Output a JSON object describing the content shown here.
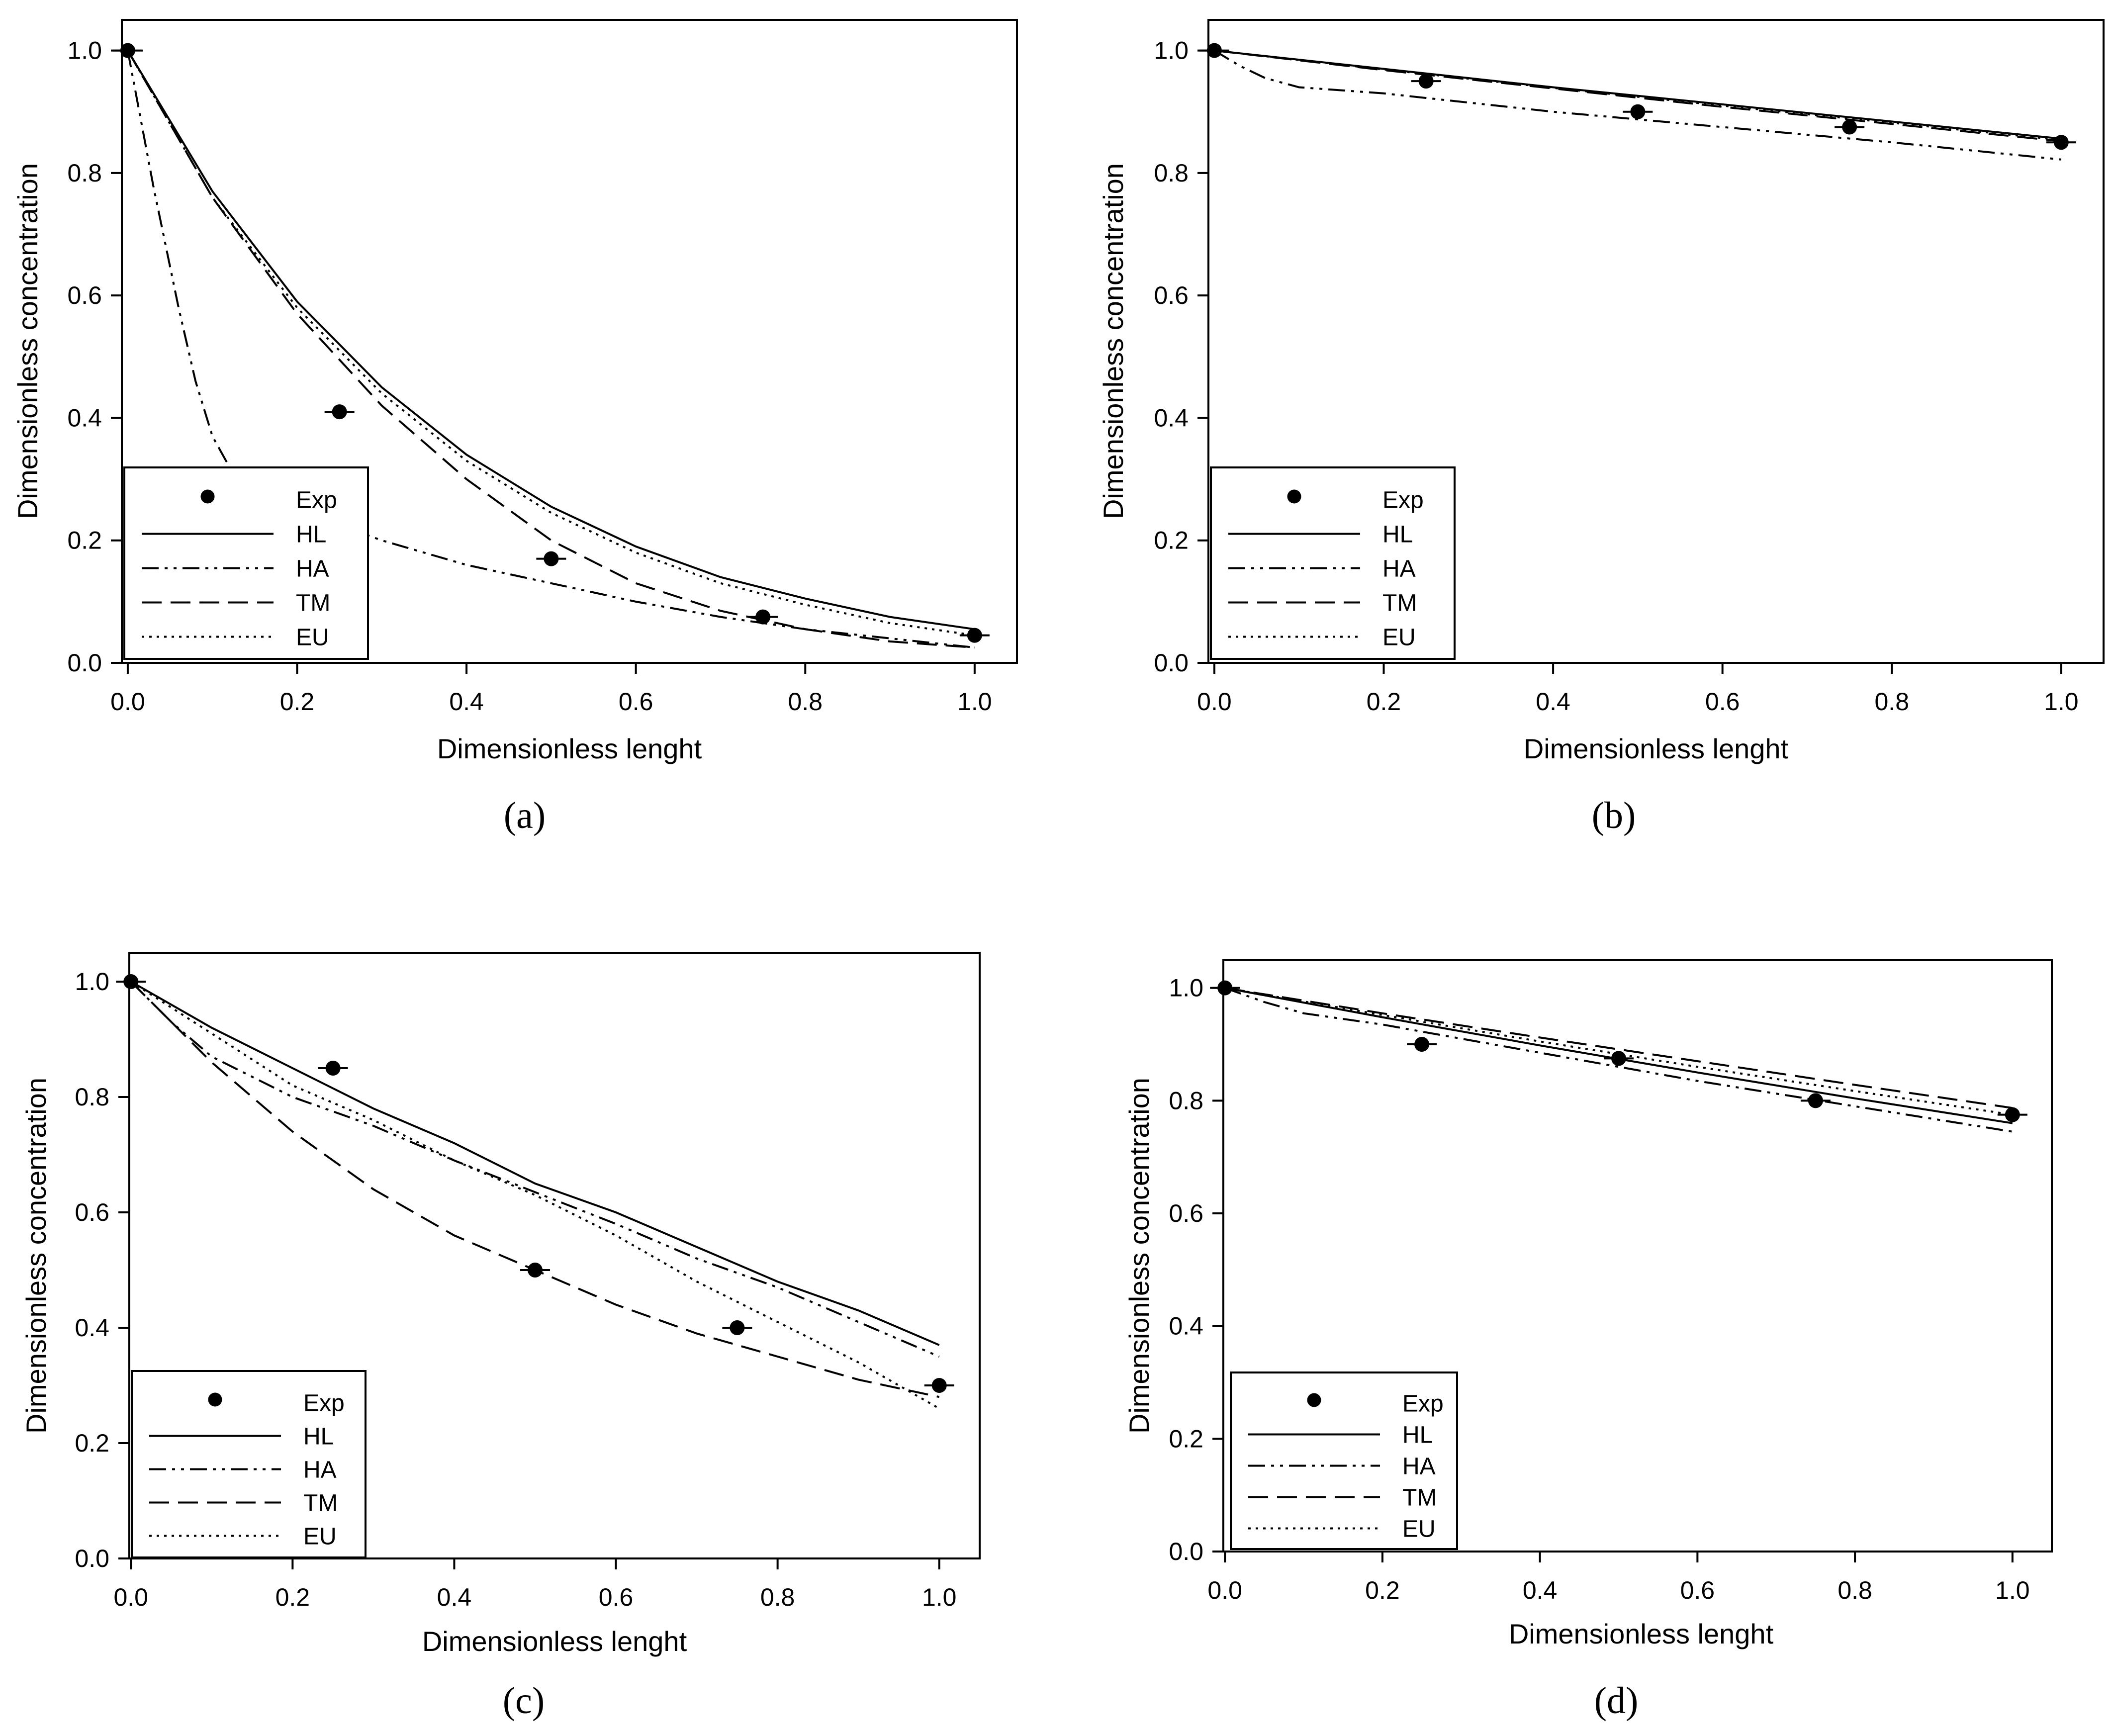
{
  "chart_data": [
    {
      "type": "line",
      "panel": "a",
      "caption": "(a)",
      "xlabel": "Dimensionless lenght",
      "ylabel": "Dimensionless concentration",
      "xlim": [
        0.0,
        1.0
      ],
      "ylim": [
        0.0,
        1.0
      ],
      "xticks": [
        "0.0",
        "0.2",
        "0.4",
        "0.6",
        "0.8",
        "1.0"
      ],
      "yticks": [
        "0.0",
        "0.2",
        "0.4",
        "0.6",
        "0.8",
        "1.0"
      ],
      "legend": [
        "Exp",
        "HL",
        "HA",
        "TM",
        "EU"
      ],
      "exp": {
        "name": "Exp",
        "x": [
          0.0,
          0.25,
          0.5,
          0.75,
          1.0
        ],
        "y": [
          1.0,
          0.41,
          0.17,
          0.075,
          0.045
        ]
      },
      "series": [
        {
          "name": "HL",
          "style": "solid",
          "x": [
            0.0,
            0.1,
            0.2,
            0.3,
            0.4,
            0.5,
            0.6,
            0.7,
            0.8,
            0.9,
            1.0
          ],
          "y": [
            1.0,
            0.77,
            0.59,
            0.45,
            0.34,
            0.255,
            0.19,
            0.14,
            0.105,
            0.075,
            0.055
          ]
        },
        {
          "name": "HA",
          "style": "dashdotdot",
          "x": [
            0.0,
            0.03,
            0.06,
            0.08,
            0.1,
            0.12,
            0.15,
            0.2,
            0.3,
            0.4,
            0.5,
            0.6,
            0.7,
            0.8,
            0.9,
            1.0
          ],
          "y": [
            1.0,
            0.78,
            0.58,
            0.46,
            0.37,
            0.32,
            0.285,
            0.25,
            0.2,
            0.16,
            0.13,
            0.1,
            0.075,
            0.055,
            0.04,
            0.025
          ]
        },
        {
          "name": "TM",
          "style": "dashed",
          "x": [
            0.0,
            0.1,
            0.2,
            0.3,
            0.4,
            0.5,
            0.6,
            0.7,
            0.8,
            0.9,
            1.0
          ],
          "y": [
            1.0,
            0.76,
            0.57,
            0.42,
            0.3,
            0.2,
            0.13,
            0.085,
            0.055,
            0.035,
            0.025
          ]
        },
        {
          "name": "EU",
          "style": "dotted",
          "x": [
            0.0,
            0.1,
            0.2,
            0.3,
            0.4,
            0.5,
            0.6,
            0.7,
            0.8,
            0.9,
            1.0
          ],
          "y": [
            1.0,
            0.76,
            0.58,
            0.44,
            0.33,
            0.245,
            0.18,
            0.13,
            0.095,
            0.065,
            0.045
          ]
        }
      ]
    },
    {
      "type": "line",
      "panel": "b",
      "caption": "(b)",
      "xlabel": "Dimensionless lenght",
      "ylabel": "Dimensionless concentration",
      "xlim": [
        0.0,
        1.0
      ],
      "ylim": [
        0.0,
        1.0
      ],
      "xticks": [
        "0.0",
        "0.2",
        "0.4",
        "0.6",
        "0.8",
        "1.0"
      ],
      "yticks": [
        "0.0",
        "0.2",
        "0.4",
        "0.6",
        "0.8",
        "1.0"
      ],
      "legend": [
        "Exp",
        "HL",
        "HA",
        "TM",
        "EU"
      ],
      "exp": {
        "name": "Exp",
        "x": [
          0.0,
          0.25,
          0.5,
          0.75,
          1.0
        ],
        "y": [
          1.0,
          0.95,
          0.9,
          0.875,
          0.85
        ]
      },
      "series": [
        {
          "name": "HL",
          "style": "solid",
          "x": [
            0.0,
            0.2,
            0.4,
            0.6,
            0.8,
            1.0
          ],
          "y": [
            1.0,
            0.97,
            0.94,
            0.912,
            0.884,
            0.856
          ]
        },
        {
          "name": "HA",
          "style": "dashdotdot",
          "x": [
            0.0,
            0.03,
            0.06,
            0.1,
            0.15,
            0.2,
            0.4,
            0.6,
            0.8,
            1.0
          ],
          "y": [
            1.0,
            0.975,
            0.955,
            0.94,
            0.935,
            0.93,
            0.9,
            0.875,
            0.85,
            0.822
          ]
        },
        {
          "name": "TM",
          "style": "dashed",
          "x": [
            0.0,
            0.2,
            0.4,
            0.6,
            0.8,
            1.0
          ],
          "y": [
            1.0,
            0.968,
            0.938,
            0.908,
            0.88,
            0.852
          ]
        },
        {
          "name": "EU",
          "style": "dotted",
          "x": [
            0.0,
            0.2,
            0.4,
            0.6,
            0.8,
            1.0
          ],
          "y": [
            1.0,
            0.969,
            0.939,
            0.91,
            0.882,
            0.854
          ]
        }
      ]
    },
    {
      "type": "line",
      "panel": "c",
      "caption": "(c)",
      "xlabel": "Dimensionless lenght",
      "ylabel": "Dimensionless concentration",
      "xlim": [
        0.0,
        1.0
      ],
      "ylim": [
        0.0,
        1.0
      ],
      "xticks": [
        "0.0",
        "0.2",
        "0.4",
        "0.6",
        "0.8",
        "1.0"
      ],
      "yticks": [
        "0.0",
        "0.2",
        "0.4",
        "0.6",
        "0.8",
        "1.0"
      ],
      "legend": [
        "Exp",
        "HL",
        "HA",
        "TM",
        "EU"
      ],
      "exp": {
        "name": "Exp",
        "x": [
          0.0,
          0.25,
          0.5,
          0.75,
          1.0
        ],
        "y": [
          1.0,
          0.85,
          0.5,
          0.4,
          0.3
        ]
      },
      "series": [
        {
          "name": "HL",
          "style": "solid",
          "x": [
            0.0,
            0.1,
            0.2,
            0.3,
            0.4,
            0.5,
            0.6,
            0.7,
            0.8,
            0.9,
            1.0
          ],
          "y": [
            1.0,
            0.92,
            0.85,
            0.78,
            0.72,
            0.65,
            0.6,
            0.54,
            0.48,
            0.43,
            0.37
          ]
        },
        {
          "name": "HA",
          "style": "dashdotdot",
          "x": [
            0.0,
            0.05,
            0.1,
            0.15,
            0.2,
            0.3,
            0.4,
            0.5,
            0.6,
            0.7,
            0.8,
            0.9,
            1.0
          ],
          "y": [
            1.0,
            0.93,
            0.87,
            0.835,
            0.8,
            0.75,
            0.69,
            0.635,
            0.58,
            0.52,
            0.47,
            0.41,
            0.35
          ]
        },
        {
          "name": "TM",
          "style": "dashed",
          "x": [
            0.0,
            0.1,
            0.2,
            0.3,
            0.4,
            0.5,
            0.6,
            0.7,
            0.8,
            0.9,
            1.0
          ],
          "y": [
            1.0,
            0.86,
            0.74,
            0.64,
            0.56,
            0.5,
            0.44,
            0.39,
            0.35,
            0.31,
            0.28
          ]
        },
        {
          "name": "EU",
          "style": "dotted",
          "x": [
            0.0,
            0.1,
            0.2,
            0.3,
            0.4,
            0.5,
            0.6,
            0.7,
            0.8,
            0.9,
            1.0
          ],
          "y": [
            1.0,
            0.91,
            0.82,
            0.76,
            0.69,
            0.63,
            0.56,
            0.48,
            0.41,
            0.34,
            0.26
          ]
        }
      ]
    },
    {
      "type": "line",
      "panel": "d",
      "caption": "(d)",
      "xlabel": "Dimensionless lenght",
      "ylabel": "Dimensionless concentration",
      "xlim": [
        0.0,
        1.0
      ],
      "ylim": [
        0.0,
        1.0
      ],
      "xticks": [
        "0.0",
        "0.2",
        "0.4",
        "0.6",
        "0.8",
        "1.0"
      ],
      "yticks": [
        "0.0",
        "0.2",
        "0.4",
        "0.6",
        "0.8",
        "1.0"
      ],
      "legend": [
        "Exp",
        "HL",
        "HA",
        "TM",
        "EU"
      ],
      "exp": {
        "name": "Exp",
        "x": [
          0.0,
          0.25,
          0.5,
          0.75,
          1.0
        ],
        "y": [
          1.0,
          0.9,
          0.875,
          0.8,
          0.775
        ]
      },
      "series": [
        {
          "name": "HL",
          "style": "solid",
          "x": [
            0.0,
            0.2,
            0.4,
            0.6,
            0.8,
            1.0
          ],
          "y": [
            1.0,
            0.948,
            0.898,
            0.85,
            0.804,
            0.76
          ]
        },
        {
          "name": "HA",
          "style": "dashdotdot",
          "x": [
            0.0,
            0.05,
            0.1,
            0.2,
            0.4,
            0.6,
            0.8,
            1.0
          ],
          "y": [
            1.0,
            0.975,
            0.955,
            0.935,
            0.885,
            0.835,
            0.79,
            0.745
          ]
        },
        {
          "name": "TM",
          "style": "dashed",
          "x": [
            0.0,
            0.2,
            0.4,
            0.6,
            0.8,
            1.0
          ],
          "y": [
            1.0,
            0.955,
            0.912,
            0.87,
            0.828,
            0.787
          ]
        },
        {
          "name": "EU",
          "style": "dotted",
          "x": [
            0.0,
            0.2,
            0.4,
            0.6,
            0.8,
            1.0
          ],
          "y": [
            1.0,
            0.952,
            0.905,
            0.86,
            0.817,
            0.775
          ]
        }
      ]
    }
  ]
}
